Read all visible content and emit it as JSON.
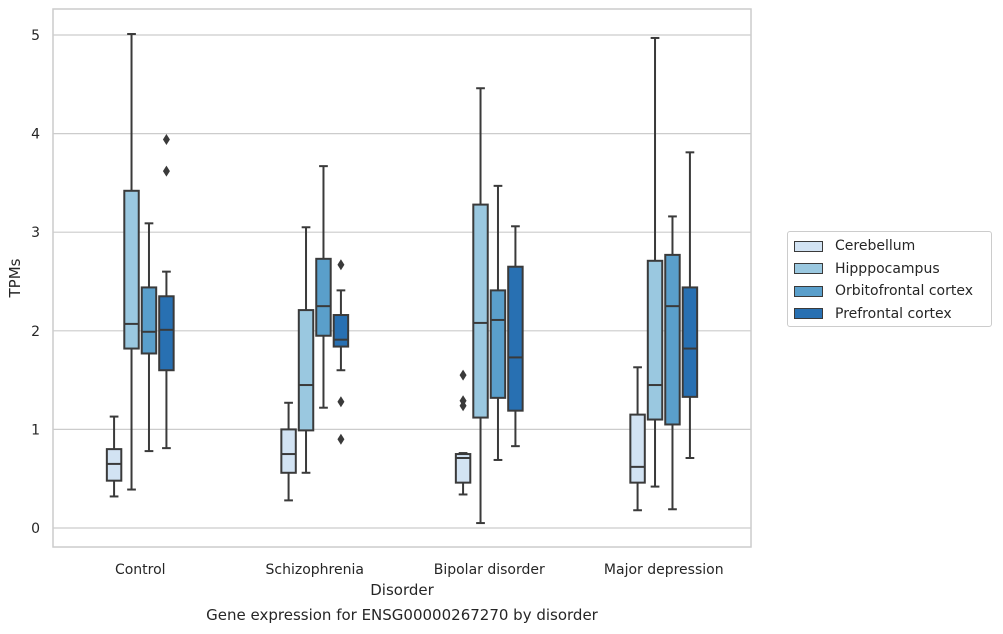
{
  "caption": "Gene expression for ENSG00000267270 by disorder",
  "chart_data": {
    "type": "box",
    "xlabel": "Disorder",
    "ylabel": "TPMs",
    "ylim": [
      -0.2,
      5.27
    ],
    "yticks": [
      0,
      1,
      2,
      3,
      4,
      5
    ],
    "categories": [
      "Control",
      "Schizophrenia",
      "Bipolar disorder",
      "Major depression"
    ],
    "grid": "horizontal",
    "legend_position": "right",
    "series": [
      {
        "name": "Cerebellum",
        "color": "#d2e3f3",
        "boxes": [
          {
            "whislo": 0.32,
            "q1": 0.48,
            "med": 0.65,
            "q3": 0.8,
            "whishi": 1.13,
            "fliers": []
          },
          {
            "whislo": 0.28,
            "q1": 0.56,
            "med": 0.75,
            "q3": 1.0,
            "whishi": 1.27,
            "fliers": []
          },
          {
            "whislo": 0.34,
            "q1": 0.46,
            "med": 0.71,
            "q3": 0.75,
            "whishi": 0.76,
            "fliers": [
              1.24,
              1.29,
              1.55
            ]
          },
          {
            "whislo": 0.18,
            "q1": 0.46,
            "med": 0.62,
            "q3": 1.15,
            "whishi": 1.63,
            "fliers": []
          }
        ]
      },
      {
        "name": "Hipppocampus",
        "color": "#9ac8e0",
        "boxes": [
          {
            "whislo": 0.39,
            "q1": 1.82,
            "med": 2.07,
            "q3": 3.42,
            "whishi": 5.01,
            "fliers": []
          },
          {
            "whislo": 0.56,
            "q1": 0.99,
            "med": 1.45,
            "q3": 2.21,
            "whishi": 3.05,
            "fliers": []
          },
          {
            "whislo": 0.05,
            "q1": 1.12,
            "med": 2.08,
            "q3": 3.28,
            "whishi": 4.46,
            "fliers": []
          },
          {
            "whislo": 0.42,
            "q1": 1.1,
            "med": 1.45,
            "q3": 2.71,
            "whishi": 4.97,
            "fliers": []
          }
        ]
      },
      {
        "name": "Orbitofrontal cortex",
        "color": "#5a9fcb",
        "boxes": [
          {
            "whislo": 0.78,
            "q1": 1.77,
            "med": 1.99,
            "q3": 2.44,
            "whishi": 3.09,
            "fliers": []
          },
          {
            "whislo": 1.22,
            "q1": 1.95,
            "med": 2.25,
            "q3": 2.73,
            "whishi": 3.67,
            "fliers": []
          },
          {
            "whislo": 0.69,
            "q1": 1.32,
            "med": 2.11,
            "q3": 2.41,
            "whishi": 3.47,
            "fliers": []
          },
          {
            "whislo": 0.19,
            "q1": 1.05,
            "med": 2.25,
            "q3": 2.77,
            "whishi": 3.16,
            "fliers": []
          }
        ]
      },
      {
        "name": "Prefrontal cortex",
        "color": "#2870b2",
        "boxes": [
          {
            "whislo": 0.81,
            "q1": 1.6,
            "med": 2.01,
            "q3": 2.35,
            "whishi": 2.6,
            "fliers": [
              3.62,
              3.94
            ]
          },
          {
            "whislo": 1.6,
            "q1": 1.84,
            "med": 1.91,
            "q3": 2.16,
            "whishi": 2.41,
            "fliers": [
              0.9,
              1.28,
              2.67
            ]
          },
          {
            "whislo": 0.83,
            "q1": 1.19,
            "med": 1.73,
            "q3": 2.65,
            "whishi": 3.06,
            "fliers": []
          },
          {
            "whislo": 0.71,
            "q1": 1.33,
            "med": 1.82,
            "q3": 2.44,
            "whishi": 3.81,
            "fliers": []
          }
        ]
      }
    ]
  }
}
